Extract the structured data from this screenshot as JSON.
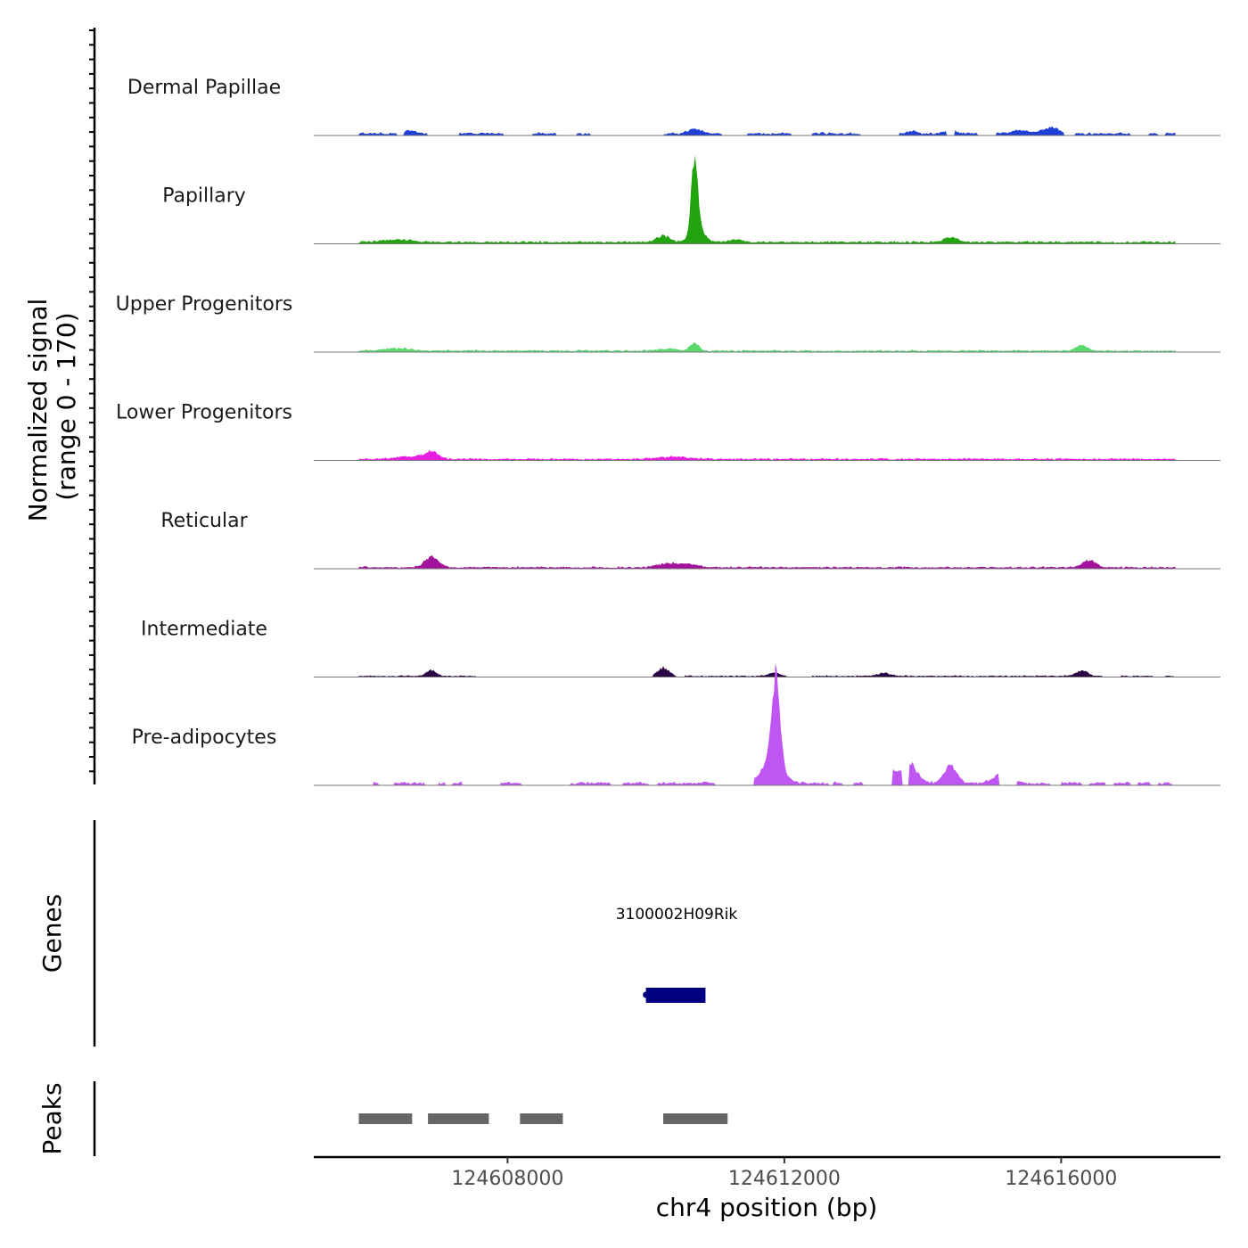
{
  "chart_data": {
    "type": "area",
    "title": "",
    "ylabel": "Normalized signal",
    "ylabel_range": "(range 0 - 170)",
    "ylim": [
      0,
      170
    ],
    "xlabel": "chr4 position (bp)",
    "xlim": [
      124605200,
      124618300
    ],
    "xticks": [
      124608000,
      124612000,
      124616000
    ],
    "xtick_labels": [
      "124608000",
      "124612000",
      "124616000"
    ],
    "signal_start": 124605850,
    "signal_end": 124617650,
    "tracks": [
      {
        "name": "Dermal Papillae",
        "color": "#1f3fd6",
        "base": 4,
        "noise": 3,
        "gaps": [
          [
            124606400,
            124606500
          ],
          [
            124606850,
            124607300
          ],
          [
            124607950,
            124608350
          ],
          [
            124608700,
            124609000
          ],
          [
            124609200,
            124610250
          ],
          [
            124611100,
            124611450
          ],
          [
            124612100,
            124612400
          ],
          [
            124613100,
            124613650
          ],
          [
            124614350,
            124614450
          ],
          [
            124614800,
            124615050
          ],
          [
            124616050,
            124616200
          ],
          [
            124617000,
            124617250
          ],
          [
            124617400,
            124617500
          ]
        ],
        "peaks": [
          [
            124610700,
            8,
            90
          ],
          [
            124615850,
            10,
            130
          ],
          [
            124615400,
            6,
            120
          ],
          [
            124614400,
            6,
            100
          ],
          [
            124613850,
            5,
            60
          ],
          [
            124606600,
            5,
            80
          ]
        ]
      },
      {
        "name": "Papillary",
        "color": "#22a40e",
        "base": 4,
        "noise": 2,
        "gaps": [],
        "peaks": [
          [
            124610700,
            130,
            45
          ],
          [
            124610750,
            25,
            90
          ],
          [
            124610250,
            10,
            100
          ],
          [
            124614400,
            8,
            100
          ],
          [
            124606400,
            4,
            200
          ],
          [
            124611300,
            4,
            100
          ]
        ]
      },
      {
        "name": "Upper Progenitors",
        "color": "#5ad86e",
        "base": 3,
        "noise": 2,
        "gaps": [],
        "peaks": [
          [
            124610700,
            14,
            60
          ],
          [
            124616300,
            10,
            80
          ],
          [
            124606400,
            4,
            200
          ],
          [
            124610300,
            3,
            150
          ]
        ]
      },
      {
        "name": "Lower Progenitors",
        "color": "#e61fe0",
        "base": 3,
        "noise": 2,
        "gaps": [],
        "peaks": [
          [
            124606900,
            12,
            100
          ],
          [
            124610400,
            4,
            200
          ],
          [
            124606600,
            4,
            200
          ]
        ]
      },
      {
        "name": "Reticular",
        "color": "#a2129a",
        "base": 3,
        "noise": 2,
        "gaps": [],
        "peaks": [
          [
            124606900,
            18,
            100
          ],
          [
            124616400,
            12,
            100
          ],
          [
            124610300,
            6,
            150
          ],
          [
            124610600,
            5,
            150
          ]
        ]
      },
      {
        "name": "Intermediate",
        "color": "#2b0845",
        "base": 2,
        "noise": 2,
        "gaps": [
          [
            124607550,
            124610100
          ],
          [
            124610450,
            124610550
          ],
          [
            124612050,
            124612400
          ],
          [
            124616600,
            124616850
          ],
          [
            124617350,
            124617500
          ]
        ],
        "peaks": [
          [
            124606900,
            10,
            70
          ],
          [
            124610250,
            14,
            80
          ],
          [
            124611850,
            6,
            80
          ],
          [
            124616300,
            10,
            80
          ],
          [
            124613450,
            5,
            100
          ]
        ]
      },
      {
        "name": "Pre-adipocytes",
        "color": "#bf55f2",
        "base": 5,
        "noise": 3,
        "gaps": [
          [
            124605850,
            124606050
          ],
          [
            124606150,
            124606350
          ],
          [
            124606800,
            124607000
          ],
          [
            124607100,
            124607200
          ],
          [
            124607350,
            124607900
          ],
          [
            124608200,
            124608900
          ],
          [
            124609500,
            124609650
          ],
          [
            124610050,
            124610150
          ],
          [
            124611000,
            124611550
          ],
          [
            124612650,
            124612700
          ],
          [
            124612850,
            124613000
          ],
          [
            124613150,
            124613550
          ],
          [
            124613700,
            124613800
          ],
          [
            124615100,
            124615350
          ],
          [
            124615850,
            124616000
          ],
          [
            124616300,
            124616400
          ],
          [
            124616650,
            124616750
          ],
          [
            124617000,
            124617100
          ],
          [
            124617300,
            124617400
          ],
          [
            124617600,
            124617650
          ]
        ],
        "peaks": [
          [
            124611880,
            150,
            60
          ],
          [
            124611820,
            40,
            140
          ],
          [
            124613800,
            32,
            120
          ],
          [
            124614400,
            30,
            90
          ],
          [
            124613500,
            20,
            100
          ],
          [
            124605850,
            5,
            50
          ],
          [
            124615150,
            18,
            120
          ]
        ]
      }
    ],
    "genes": [
      {
        "name": "3100002H09Rik",
        "start": 124610000,
        "end": 124610860,
        "color": "#000080"
      }
    ],
    "peaks_track": [
      {
        "start": 124605850,
        "end": 124606620
      },
      {
        "start": 124606850,
        "end": 124607730
      },
      {
        "start": 124608180,
        "end": 124608800
      },
      {
        "start": 124610250,
        "end": 124611180
      }
    ]
  },
  "gene_title": "Genes",
  "peaks_title": "Peaks"
}
